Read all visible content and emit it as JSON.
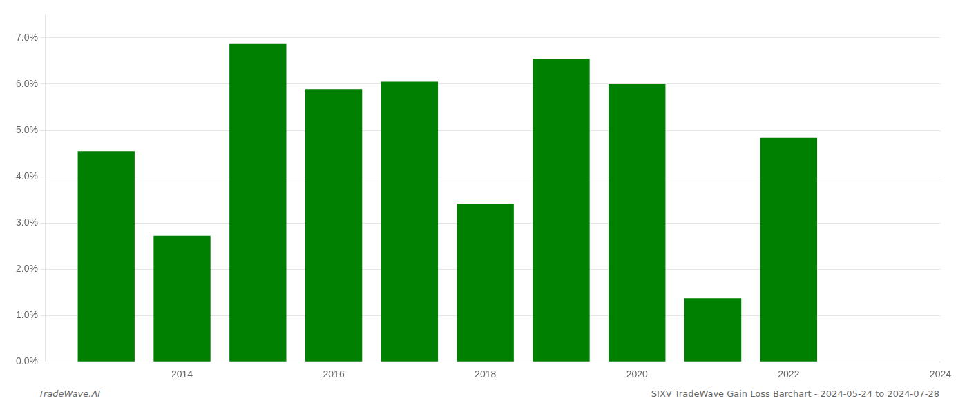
{
  "chart_data": {
    "type": "bar",
    "x": [
      2013,
      2014,
      2015,
      2016,
      2017,
      2018,
      2019,
      2020,
      2021,
      2022
    ],
    "values": [
      0.0455,
      0.0272,
      0.0687,
      0.0589,
      0.0605,
      0.0342,
      0.0655,
      0.06,
      0.0137,
      0.0484
    ],
    "color": "#008000",
    "xlim": [
      2012.2,
      2024
    ],
    "xticks": [
      2014,
      2016,
      2018,
      2020,
      2022,
      2024
    ],
    "ylim": [
      0,
      0.075
    ],
    "yticks": [
      {
        "value": 0.0,
        "label": "0.0%"
      },
      {
        "value": 0.01,
        "label": "1.0%"
      },
      {
        "value": 0.02,
        "label": "2.0%"
      },
      {
        "value": 0.03,
        "label": "3.0%"
      },
      {
        "value": 0.04,
        "label": "4.0%"
      },
      {
        "value": 0.05,
        "label": "5.0%"
      },
      {
        "value": 0.06,
        "label": "6.0%"
      },
      {
        "value": 0.07,
        "label": "7.0%"
      }
    ],
    "grid": true,
    "annotations": [
      "TradeWave.AI",
      "SIXV TradeWave Gain Loss Barchart - 2024-05-24 to 2024-07-28"
    ]
  }
}
